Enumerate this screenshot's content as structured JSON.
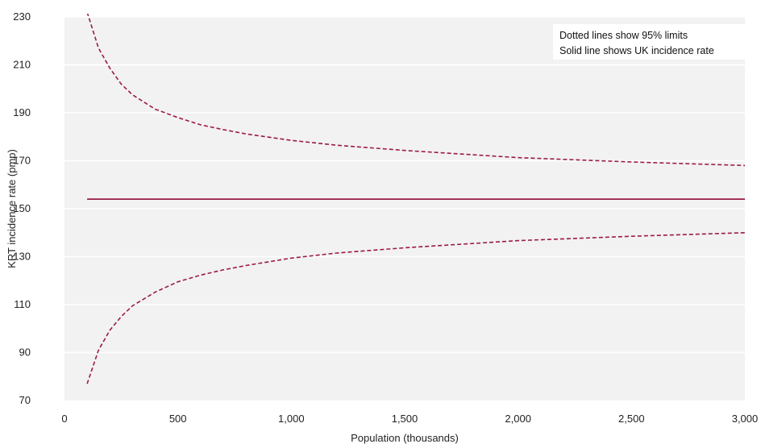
{
  "chart_data": {
    "type": "line",
    "xlabel": "Population (thousands)",
    "ylabel": "KRT incidence rate (pmp)",
    "xlim": [
      0,
      3000
    ],
    "ylim": [
      70,
      230
    ],
    "x_ticks": [
      0,
      500,
      1000,
      1500,
      2000,
      2500,
      3000
    ],
    "x_tick_labels": [
      "0",
      "500",
      "1,000",
      "1,500",
      "2,000",
      "2,500",
      "3,000"
    ],
    "y_ticks": [
      70,
      90,
      110,
      130,
      150,
      170,
      190,
      210,
      230
    ],
    "y_tick_labels": [
      "70",
      "90",
      "110",
      "130",
      "150",
      "170",
      "190",
      "210",
      "230"
    ],
    "grid": "horizontal",
    "legend_placement": "top-right",
    "annotation": [
      "Dotted lines show 95% limits",
      "Solid line shows UK incidence rate"
    ],
    "colors": {
      "series": "#9b1b45",
      "plot_background": "#f2f2f2",
      "grid": "#ffffff"
    },
    "series": [
      {
        "style": "dashed",
        "x": [
          100,
          150,
          200,
          250,
          300,
          400,
          500,
          600,
          700,
          800,
          1000,
          1200,
          1500,
          2000,
          2500,
          3000
        ],
        "values": [
          232,
          217,
          208.6,
          202,
          197.5,
          191.5,
          188,
          185,
          183,
          181.2,
          178.5,
          176.5,
          174.3,
          171.3,
          169.5,
          168
        ]
      },
      {
        "style": "solid",
        "x": [
          100,
          3000
        ],
        "values": [
          154,
          154
        ]
      },
      {
        "style": "dashed",
        "x": [
          100,
          150,
          200,
          250,
          300,
          400,
          500,
          600,
          700,
          800,
          1000,
          1200,
          1500,
          2000,
          2500,
          3000
        ],
        "values": [
          77,
          91,
          99.3,
          105,
          109.5,
          115.2,
          119.5,
          122.3,
          124.5,
          126.3,
          129.4,
          131.5,
          133.7,
          136.7,
          138.5,
          140
        ]
      }
    ]
  }
}
